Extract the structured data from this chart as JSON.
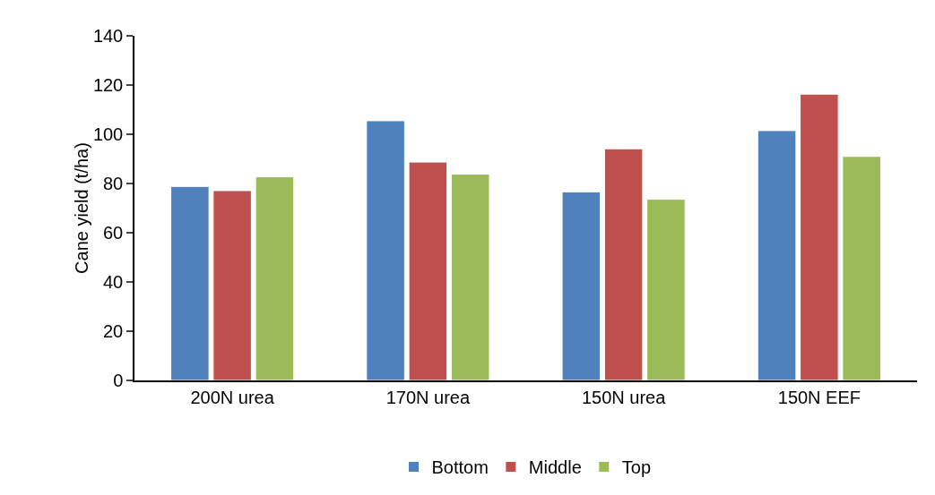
{
  "chart_data": {
    "type": "bar",
    "ylabel": "Cane yield (t/ha)",
    "categories": [
      "200N urea",
      "170N urea",
      "150N urea",
      "150N EEF"
    ],
    "series": [
      {
        "name": "Bottom",
        "color": "#4f81bd",
        "values": [
          78.8,
          105.5,
          76.6,
          101.5
        ]
      },
      {
        "name": "Middle",
        "color": "#c0504d",
        "values": [
          77.1,
          88.7,
          94.1,
          116.3
        ]
      },
      {
        "name": "Top",
        "color": "#9bbb59",
        "values": [
          82.7,
          83.8,
          73.6,
          91.0
        ]
      }
    ],
    "ylim": [
      0,
      140
    ],
    "yticks": [
      0,
      20,
      40,
      60,
      80,
      100,
      120,
      140
    ],
    "grid": false,
    "legend": "bottom"
  }
}
